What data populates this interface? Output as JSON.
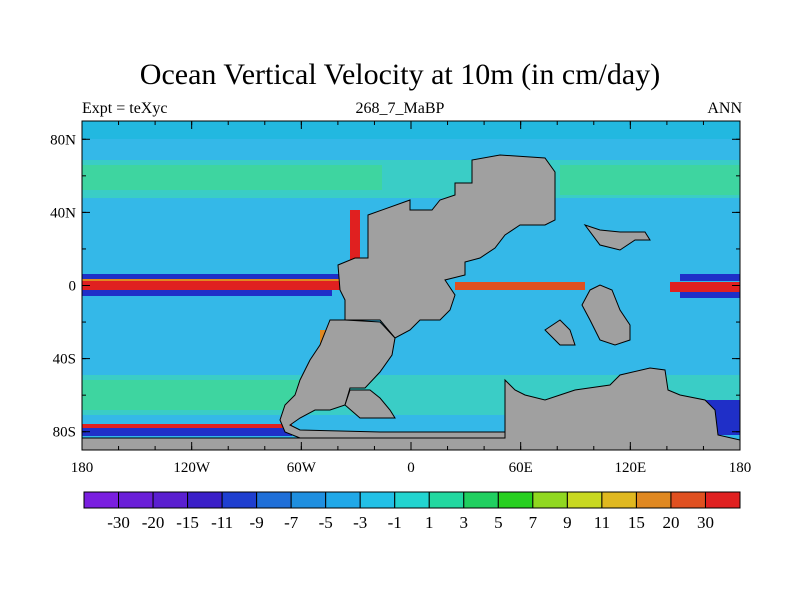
{
  "figure": {
    "title": "Ocean Vertical Velocity at 10m (in cm/day)",
    "left_label": "Expt = teXyc",
    "center_label": "268_7_MaBP",
    "right_label": "ANN"
  },
  "map": {
    "land_color": "#a0a0a0",
    "background_color": "#34b8e8",
    "x_axis": {
      "ticks": [
        "180",
        "120W",
        "60W",
        "0",
        "60E",
        "120E",
        "180"
      ],
      "values": [
        -180,
        -120,
        -60,
        0,
        60,
        120,
        180
      ]
    },
    "y_axis": {
      "ticks": [
        "80N",
        "40N",
        "0",
        "40S",
        "80S"
      ],
      "values": [
        80,
        40,
        0,
        -40,
        -80
      ]
    },
    "lat_range": [
      -90,
      90
    ],
    "lon_range": [
      -180,
      180
    ]
  },
  "colorbar": {
    "labels": [
      "-30",
      "-20",
      "-15",
      "-11",
      "-9",
      "-7",
      "-5",
      "-3",
      "-1",
      "1",
      "3",
      "5",
      "7",
      "9",
      "11",
      "15",
      "20",
      "30"
    ],
    "colors": [
      "#7a1fe0",
      "#6a1fd8",
      "#5a1fd0",
      "#3a1fc8",
      "#1f3fd0",
      "#1f6fd8",
      "#1f8fe0",
      "#20a8e8",
      "#22c0e6",
      "#22d4d0",
      "#22d8a0",
      "#20d060",
      "#28d020",
      "#90d820",
      "#c8d820",
      "#e0b820",
      "#e08820",
      "#e05020",
      "#e02020"
    ]
  }
}
